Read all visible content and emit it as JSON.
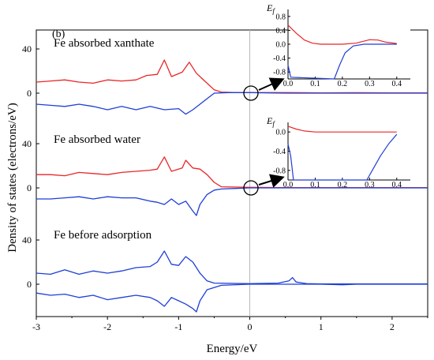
{
  "chart_data": {
    "type": "line",
    "panel_label": "(b)",
    "xlabel": "Energy/eV",
    "ylabel": "Density of states (electrons/eV)",
    "xlim": [
      -3,
      2.5
    ],
    "x_ticks": [
      "-3",
      "-2",
      "-1",
      "0",
      "1",
      "2"
    ],
    "fermi_level_x": 0,
    "colors": {
      "spin_up": "#e8262a",
      "spin_down": "#1f3fd6",
      "fermi_line": "#b8b8b8",
      "axis": "#000000"
    },
    "subplots": [
      {
        "label": "Fe absorbed xanthate",
        "y_ticks": [
          "40",
          "0"
        ],
        "y_tick_values": [
          40,
          0
        ],
        "series": [
          {
            "spin": "up",
            "color": "#e8262a",
            "points": [
              [
                -3.0,
                10
              ],
              [
                -2.8,
                11
              ],
              [
                -2.6,
                12
              ],
              [
                -2.4,
                10
              ],
              [
                -2.2,
                9
              ],
              [
                -2.0,
                12
              ],
              [
                -1.8,
                11
              ],
              [
                -1.6,
                12
              ],
              [
                -1.45,
                16
              ],
              [
                -1.3,
                17
              ],
              [
                -1.2,
                30
              ],
              [
                -1.1,
                15
              ],
              [
                -0.95,
                19
              ],
              [
                -0.85,
                28
              ],
              [
                -0.75,
                18
              ],
              [
                -0.6,
                9
              ],
              [
                -0.5,
                3
              ],
              [
                -0.4,
                1
              ],
              [
                -0.2,
                0.5
              ],
              [
                0,
                0.5
              ],
              [
                0.5,
                0.5
              ],
              [
                1.0,
                0.3
              ],
              [
                1.5,
                0.4
              ],
              [
                2.0,
                0.3
              ],
              [
                2.5,
                0.3
              ]
            ]
          },
          {
            "spin": "down",
            "color": "#1f3fd6",
            "points": [
              [
                -3.0,
                -10
              ],
              [
                -2.8,
                -11
              ],
              [
                -2.6,
                -12
              ],
              [
                -2.4,
                -10
              ],
              [
                -2.2,
                -12
              ],
              [
                -2.0,
                -15
              ],
              [
                -1.8,
                -12
              ],
              [
                -1.6,
                -15
              ],
              [
                -1.4,
                -12
              ],
              [
                -1.2,
                -15
              ],
              [
                -1.0,
                -14
              ],
              [
                -0.9,
                -19
              ],
              [
                -0.8,
                -15
              ],
              [
                -0.7,
                -10
              ],
              [
                -0.6,
                -5
              ],
              [
                -0.5,
                0
              ],
              [
                -0.3,
                0.5
              ],
              [
                0,
                0.5
              ],
              [
                0.5,
                0
              ],
              [
                1.0,
                0
              ],
              [
                1.5,
                0
              ],
              [
                2.0,
                0
              ],
              [
                2.5,
                0
              ]
            ]
          }
        ],
        "inset": {
          "y_label": "Ef",
          "x_ticks": [
            "0.0",
            "0.1",
            "0.2",
            "0.3",
            "0.4"
          ],
          "y_ticks": [
            "0.8",
            "0.4",
            "0.0",
            "-0.4",
            "-0.8"
          ],
          "xlim": [
            0,
            0.45
          ],
          "ylim": [
            -1.0,
            1.0
          ],
          "series": [
            {
              "spin": "up",
              "color": "#e8262a",
              "points": [
                [
                  0,
                  0.55
                ],
                [
                  0.03,
                  0.32
                ],
                [
                  0.06,
                  0.12
                ],
                [
                  0.09,
                  0.03
                ],
                [
                  0.12,
                  0.0
                ],
                [
                  0.2,
                  0.0
                ],
                [
                  0.25,
                  0.03
                ],
                [
                  0.3,
                  0.13
                ],
                [
                  0.33,
                  0.12
                ],
                [
                  0.36,
                  0.06
                ],
                [
                  0.4,
                  0.02
                ]
              ]
            },
            {
              "spin": "down",
              "color": "#1f3fd6",
              "points": [
                [
                  0,
                  -0.6
                ],
                [
                  0.01,
                  -0.95
                ],
                [
                  0.17,
                  -1.05
                ],
                [
                  0.19,
                  -0.6
                ],
                [
                  0.21,
                  -0.25
                ],
                [
                  0.24,
                  -0.05
                ],
                [
                  0.28,
                  0.0
                ],
                [
                  0.4,
                  0.0
                ]
              ]
            }
          ]
        }
      },
      {
        "label": "Fe absorbed water",
        "y_ticks": [
          "40",
          "0"
        ],
        "y_tick_values": [
          40,
          0
        ],
        "series": [
          {
            "spin": "up",
            "color": "#e8262a",
            "points": [
              [
                -3.0,
                12
              ],
              [
                -2.8,
                12
              ],
              [
                -2.6,
                11
              ],
              [
                -2.4,
                14
              ],
              [
                -2.2,
                13
              ],
              [
                -2.0,
                12
              ],
              [
                -1.8,
                14
              ],
              [
                -1.6,
                15
              ],
              [
                -1.4,
                16
              ],
              [
                -1.3,
                17
              ],
              [
                -1.2,
                28
              ],
              [
                -1.1,
                15
              ],
              [
                -0.95,
                18
              ],
              [
                -0.9,
                25
              ],
              [
                -0.8,
                18
              ],
              [
                -0.7,
                17
              ],
              [
                -0.6,
                12
              ],
              [
                -0.5,
                5
              ],
              [
                -0.4,
                1
              ],
              [
                0,
                0.5
              ],
              [
                0.5,
                0.3
              ],
              [
                1.0,
                0.3
              ],
              [
                1.5,
                0.3
              ],
              [
                2.0,
                0.3
              ],
              [
                2.5,
                0.3
              ]
            ]
          },
          {
            "spin": "down",
            "color": "#1f3fd6",
            "points": [
              [
                -3.0,
                -10
              ],
              [
                -2.8,
                -10
              ],
              [
                -2.6,
                -9
              ],
              [
                -2.4,
                -8
              ],
              [
                -2.2,
                -10
              ],
              [
                -2.0,
                -8
              ],
              [
                -1.8,
                -9
              ],
              [
                -1.6,
                -9
              ],
              [
                -1.4,
                -12
              ],
              [
                -1.3,
                -13
              ],
              [
                -1.2,
                -15
              ],
              [
                -1.1,
                -10
              ],
              [
                -1.0,
                -15
              ],
              [
                -0.9,
                -12
              ],
              [
                -0.8,
                -21
              ],
              [
                -0.75,
                -25
              ],
              [
                -0.7,
                -15
              ],
              [
                -0.6,
                -6
              ],
              [
                -0.5,
                -2
              ],
              [
                -0.4,
                -1
              ],
              [
                -0.2,
                -0.5
              ],
              [
                0,
                0
              ],
              [
                0.5,
                0
              ],
              [
                1.0,
                0
              ],
              [
                1.5,
                0
              ],
              [
                2.0,
                0
              ],
              [
                2.5,
                0
              ]
            ]
          }
        ],
        "inset": {
          "y_label": "Ef",
          "x_ticks": [
            "0.0",
            "0.1",
            "0.2",
            "0.3",
            "0.4"
          ],
          "y_ticks": [
            "0.0",
            "-0.4",
            "-0.8"
          ],
          "xlim": [
            0,
            0.45
          ],
          "ylim": [
            -1.0,
            0.2
          ],
          "series": [
            {
              "spin": "up",
              "color": "#e8262a",
              "points": [
                [
                  0,
                  0.12
                ],
                [
                  0.03,
                  0.06
                ],
                [
                  0.06,
                  0.02
                ],
                [
                  0.1,
                  0.0
                ],
                [
                  0.4,
                  0.0
                ]
              ]
            },
            {
              "spin": "down",
              "color": "#1f3fd6",
              "points": [
                [
                  0,
                  -0.25
                ],
                [
                  0.01,
                  -0.5
                ],
                [
                  0.02,
                  -1.05
                ],
                [
                  0.29,
                  -1.05
                ],
                [
                  0.31,
                  -0.8
                ],
                [
                  0.34,
                  -0.5
                ],
                [
                  0.37,
                  -0.25
                ],
                [
                  0.4,
                  -0.05
                ]
              ]
            }
          ]
        }
      },
      {
        "label": "Fe before adsorption",
        "y_ticks": [
          "40",
          "0"
        ],
        "y_tick_values": [
          40,
          0
        ],
        "series": [
          {
            "spin": "up",
            "color": "#1f3fd6",
            "points": [
              [
                -3.0,
                10
              ],
              [
                -2.8,
                9
              ],
              [
                -2.6,
                13
              ],
              [
                -2.4,
                9
              ],
              [
                -2.2,
                12
              ],
              [
                -2.0,
                10
              ],
              [
                -1.8,
                12
              ],
              [
                -1.6,
                15
              ],
              [
                -1.4,
                16
              ],
              [
                -1.3,
                20
              ],
              [
                -1.2,
                30
              ],
              [
                -1.1,
                18
              ],
              [
                -1.0,
                17
              ],
              [
                -0.9,
                25
              ],
              [
                -0.8,
                20
              ],
              [
                -0.7,
                10
              ],
              [
                -0.6,
                3
              ],
              [
                -0.5,
                1
              ],
              [
                0,
                0.5
              ],
              [
                0.4,
                1
              ],
              [
                0.55,
                3
              ],
              [
                0.6,
                6
              ],
              [
                0.65,
                2
              ],
              [
                0.8,
                0.5
              ],
              [
                1.0,
                0.3
              ],
              [
                1.5,
                0.3
              ],
              [
                2.0,
                0.3
              ],
              [
                2.5,
                0.3
              ]
            ]
          },
          {
            "spin": "down",
            "color": "#1f3fd6",
            "points": [
              [
                -3.0,
                -8
              ],
              [
                -2.8,
                -10
              ],
              [
                -2.6,
                -9
              ],
              [
                -2.4,
                -12
              ],
              [
                -2.2,
                -10
              ],
              [
                -2.0,
                -14
              ],
              [
                -1.8,
                -12
              ],
              [
                -1.6,
                -10
              ],
              [
                -1.4,
                -12
              ],
              [
                -1.3,
                -15
              ],
              [
                -1.2,
                -20
              ],
              [
                -1.1,
                -12
              ],
              [
                -1.0,
                -15
              ],
              [
                -0.9,
                -18
              ],
              [
                -0.8,
                -22
              ],
              [
                -0.75,
                -25
              ],
              [
                -0.7,
                -15
              ],
              [
                -0.6,
                -5
              ],
              [
                -0.4,
                -1
              ],
              [
                0,
                0
              ],
              [
                1.0,
                0
              ],
              [
                1.3,
                -0.5
              ],
              [
                1.5,
                0
              ],
              [
                2.0,
                0
              ],
              [
                2.5,
                0
              ]
            ]
          }
        ]
      }
    ]
  }
}
